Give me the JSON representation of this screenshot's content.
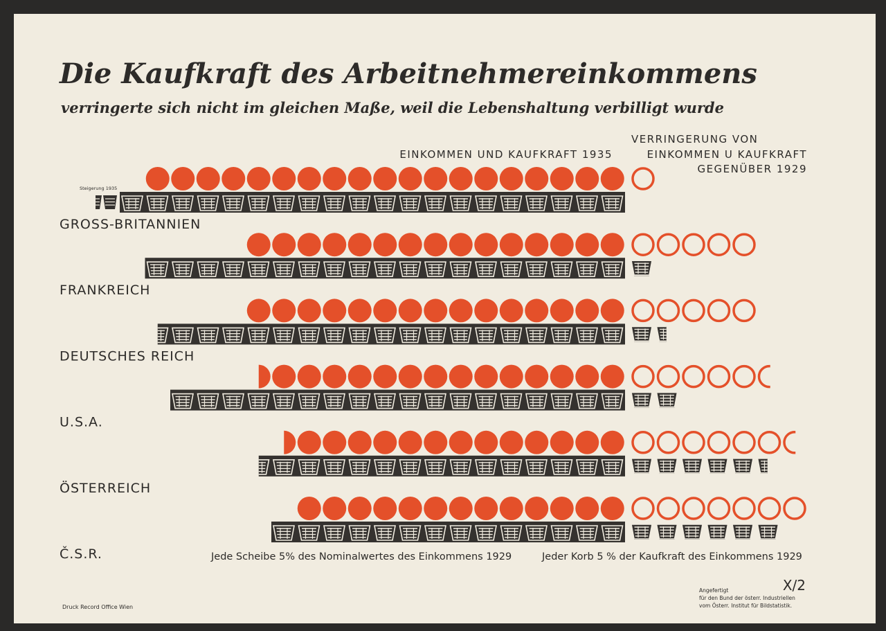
{
  "title": "Die Kaufkraft des Arbeitnehmereinkommens",
  "subtitle": "verringerte sich nicht im gleichen Maße, weil die Lebenshaltung verbilligt wurde",
  "chart_data": {
    "type": "pictogram-bar",
    "title": "Die Kaufkraft des Arbeitnehmereinkommens",
    "subtitle": "verringerte sich nicht im gleichen Maße, weil die Lebenshaltung verbilligt wurde",
    "column_header_left": "EINKOMMEN UND KAUFKRAFT 1935",
    "column_header_right": [
      "VERRINGERUNG VON",
      "EINKOMMEN U KAUFKRAFT",
      "GEGENÜBER 1929"
    ],
    "unit_disc": "Jede Scheibe 5% des Nominalwertes des Einkommens 1929",
    "unit_basket": "Jeder Korb 5 % der Kaufkraft des Einkommens 1929",
    "increase_label": "Steigerung 1935",
    "colors": {
      "income": "#e4502a",
      "purchasing_power": "#35322f",
      "paper": "#f1ece0"
    },
    "countries": [
      {
        "name": "GROSS-BRITANNIEN",
        "income_1935": 19,
        "income_decrease": 1,
        "purchasing_power_1935": 20,
        "purchasing_power_decrease": 0,
        "purchasing_power_increase": 1.5
      },
      {
        "name": "FRANKREICH",
        "income_1935": 15,
        "income_decrease": 5,
        "purchasing_power_1935": 19,
        "purchasing_power_decrease": 1
      },
      {
        "name": "DEUTSCHES REICH",
        "income_1935": 15,
        "income_decrease": 5,
        "purchasing_power_1935": 18.5,
        "purchasing_power_decrease": 1.5
      },
      {
        "name": "U.S.A.",
        "income_1935": 14.5,
        "income_decrease": 5.5,
        "purchasing_power_1935": 18,
        "purchasing_power_decrease": 2
      },
      {
        "name": "ÖSTERREICH",
        "income_1935": 13.5,
        "income_decrease": 6.5,
        "purchasing_power_1935": 14.5,
        "purchasing_power_decrease": 5.5
      },
      {
        "name": "Č.S.R.",
        "income_1935": 13,
        "income_decrease": 7,
        "purchasing_power_1935": 14,
        "purchasing_power_decrease": 6
      }
    ]
  },
  "footer": {
    "printer": "Druck Record Office Wien",
    "made_by": [
      "Angefertigt",
      "für den Bund der österr. Industriellen",
      "vom Österr. Institut für Bildstatistik."
    ],
    "sheet_number": "X/2"
  }
}
